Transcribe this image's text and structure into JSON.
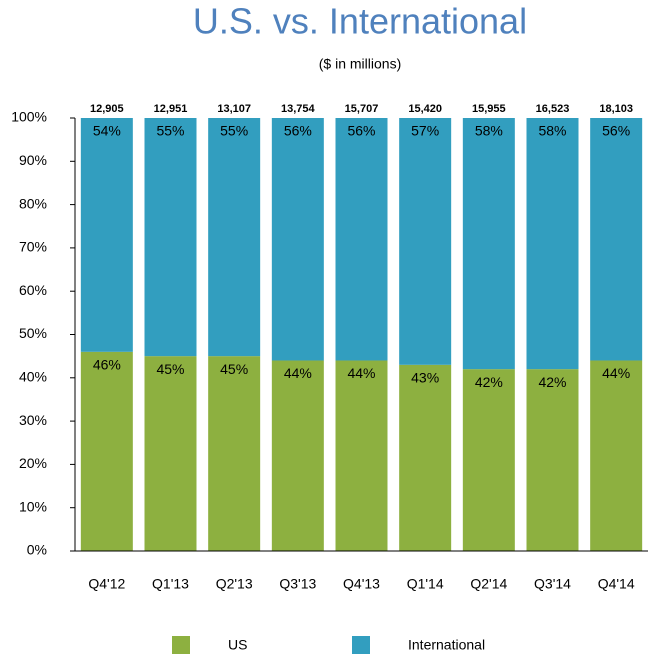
{
  "chart_data": {
    "type": "stacked_bar_percent",
    "title": "U.S. vs. International",
    "subtitle": "($ in millions)",
    "categories": [
      "Q4'12",
      "Q1'13",
      "Q2'13",
      "Q3'13",
      "Q4'13",
      "Q1'14",
      "Q2'14",
      "Q3'14",
      "Q4'14"
    ],
    "series": [
      {
        "name": "US",
        "color": "#8db040",
        "values": [
          46,
          45,
          45,
          44,
          44,
          43,
          42,
          42,
          44
        ],
        "value_labels": [
          "46%",
          "45%",
          "45%",
          "44%",
          "44%",
          "43%",
          "42%",
          "42%",
          "44%"
        ]
      },
      {
        "name": "International",
        "color": "#329ebf",
        "values": [
          54,
          55,
          55,
          56,
          56,
          57,
          58,
          58,
          56
        ],
        "value_labels": [
          "54%",
          "55%",
          "55%",
          "56%",
          "56%",
          "57%",
          "58%",
          "58%",
          "56%"
        ]
      }
    ],
    "totals": {
      "values": [
        12905,
        12951,
        13107,
        13754,
        15707,
        15420,
        15955,
        16523,
        18103
      ],
      "value_labels": [
        "12,905",
        "12,951",
        "13,107",
        "13,754",
        "15,707",
        "15,420",
        "15,955",
        "16,523",
        "18,103"
      ]
    },
    "ylim": [
      0,
      100
    ],
    "yticks": [
      {
        "value": 0,
        "label": "0%"
      },
      {
        "value": 10,
        "label": "10%"
      },
      {
        "value": 20,
        "label": "20%"
      },
      {
        "value": 30,
        "label": "30%"
      },
      {
        "value": 40,
        "label": "40%"
      },
      {
        "value": 50,
        "label": "50%"
      },
      {
        "value": 60,
        "label": "60%"
      },
      {
        "value": 70,
        "label": "70%"
      },
      {
        "value": 80,
        "label": "80%"
      },
      {
        "value": 90,
        "label": "90%"
      },
      {
        "value": 100,
        "label": "100%"
      }
    ],
    "legend": "bottom"
  }
}
